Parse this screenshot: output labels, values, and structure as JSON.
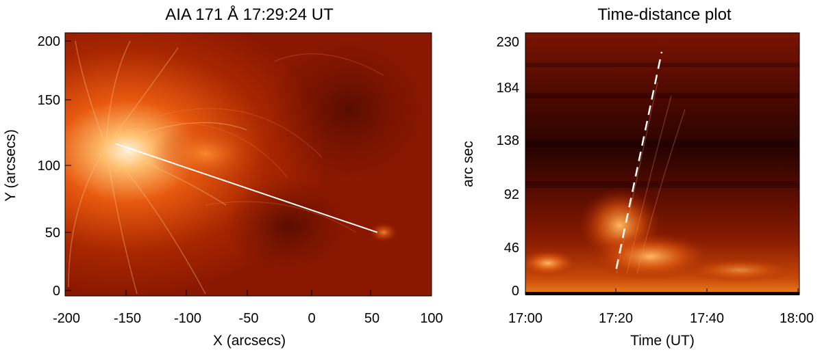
{
  "left_panel": {
    "title": "AIA 171 Å 17:29:24 UT",
    "xlabel": "X (arcsecs)",
    "ylabel": "Y (arcsecs)",
    "xticks": [
      "-200",
      "-150",
      "-100",
      "-50",
      "0",
      "50",
      "100"
    ],
    "yticks": [
      "200",
      "150",
      "100",
      "50",
      "0"
    ],
    "slit": {
      "x1": -160,
      "y1": 118,
      "x2": 57,
      "y2": 47
    },
    "xlim": [
      -202,
      102
    ],
    "ylim": [
      -4,
      207
    ]
  },
  "right_panel": {
    "title": "Time-distance plot",
    "xlabel": "Time (UT)",
    "ylabel": "arc sec",
    "xticks": [
      "17:00",
      "17:20",
      "17:40",
      "18:00"
    ],
    "yticks": [
      "230",
      "184",
      "138",
      "92",
      "46",
      "0"
    ],
    "dashed_line": {
      "t1": "17:20",
      "d1": 20,
      "t2": "17:30",
      "d2": 220
    }
  },
  "colors": {
    "dark": "#2a0000",
    "mid": "#a01e00",
    "bright": "#ff9a30",
    "hot": "#ffe0b0"
  }
}
